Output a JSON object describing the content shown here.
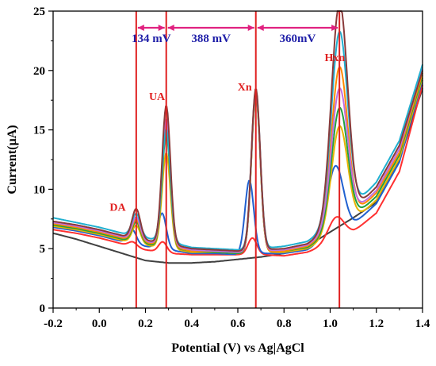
{
  "chart_data": {
    "type": "line",
    "title": "",
    "xlabel": "Potential (V) vs Ag|AgCl",
    "ylabel": "Current(µA)",
    "xlim": [
      -0.2,
      1.4
    ],
    "ylim": [
      0,
      25
    ],
    "xticks": [
      -0.2,
      0.0,
      0.2,
      0.4,
      0.6,
      0.8,
      1.0,
      1.2,
      1.4
    ],
    "xtick_labels": [
      "-0.2",
      "0.0",
      "0.2",
      "0.4",
      "0.6",
      "0.8",
      "1.0",
      "1.2",
      "1.4"
    ],
    "yticks": [
      0,
      5,
      10,
      15,
      20,
      25
    ],
    "ytick_labels": [
      "0",
      "5",
      "10",
      "15",
      "20",
      "25"
    ],
    "grid": false,
    "legend": "none",
    "peak_positions": [
      0.16,
      0.29,
      0.678,
      1.04
    ],
    "peak_lines_color": "#e02020",
    "separations": [
      {
        "label": "134 mV",
        "from": 0.16,
        "to": 0.29
      },
      {
        "label": "388 mV",
        "from": 0.29,
        "to": 0.678
      },
      {
        "label": "360mV",
        "from": 0.678,
        "to": 1.04
      }
    ],
    "separation_color": "#e0207f",
    "separation_text_color": "#1f1fa8",
    "peak_labels": [
      {
        "text": "DA",
        "x": 0.08,
        "y": 8.2
      },
      {
        "text": "UA",
        "x": 0.25,
        "y": 17.5
      },
      {
        "text": "Xn",
        "x": 0.63,
        "y": 18.3
      },
      {
        "text": "Hxn",
        "x": 1.02,
        "y": 20.8
      }
    ],
    "peak_label_color": "#e02020",
    "series": [
      {
        "color": "#404040",
        "baseline": [
          6.3,
          5.8,
          5.2,
          4.6,
          4.0,
          3.8,
          3.8,
          3.9,
          4.1,
          4.3,
          4.6,
          5.2,
          6.4,
          7.6,
          8.9,
          12.5,
          18.5
        ],
        "peaks": [
          0,
          0,
          0,
          0
        ]
      },
      {
        "color": "#ff3030",
        "baseline": [
          6.6,
          6.3,
          5.9,
          5.4,
          4.9,
          4.6,
          4.5,
          4.5,
          4.5,
          4.5,
          4.4,
          4.7,
          5.4,
          6.4,
          8.0,
          11.5,
          18.8
        ],
        "peaks": [
          0.4,
          0.9,
          1.4,
          2.0
        ]
      },
      {
        "color": "#2060d0",
        "baseline": [
          6.8,
          6.5,
          6.1,
          5.6,
          5.2,
          4.9,
          4.6,
          4.6,
          4.5,
          4.6,
          4.6,
          4.9,
          5.8,
          7.0,
          8.8,
          12.3,
          19.2
        ],
        "peaks": [
          1.2,
          3.0,
          6.2,
          5.9
        ]
      },
      {
        "color": "#e8b400",
        "baseline": [
          6.9,
          6.6,
          6.2,
          5.7,
          5.3,
          5.0,
          4.7,
          4.7,
          4.6,
          4.7,
          4.7,
          5.0,
          6.0,
          7.3,
          9.1,
          12.6,
          19.4
        ],
        "peaks": [
          1.5,
          8.0,
          13.2,
          8.8
        ]
      },
      {
        "color": "#20a040",
        "baseline": [
          7.0,
          6.7,
          6.3,
          5.8,
          5.4,
          5.1,
          4.8,
          4.7,
          4.6,
          4.7,
          4.8,
          5.1,
          6.2,
          7.6,
          9.4,
          12.9,
          19.6
        ],
        "peaks": [
          1.7,
          9.5,
          13.3,
          10.1
        ]
      },
      {
        "color": "#ff8a00",
        "baseline": [
          7.1,
          6.8,
          6.4,
          5.9,
          5.5,
          5.2,
          4.8,
          4.8,
          4.7,
          4.7,
          4.8,
          5.2,
          6.3,
          7.8,
          9.7,
          13.1,
          19.8
        ],
        "peaks": [
          1.8,
          10.1,
          13.4,
          13.4
        ]
      },
      {
        "color": "#c070e0",
        "baseline": [
          7.2,
          6.9,
          6.5,
          6.0,
          5.6,
          5.3,
          4.9,
          4.8,
          4.7,
          4.8,
          4.9,
          5.3,
          6.5,
          8.0,
          9.9,
          13.4,
          20.1
        ],
        "peaks": [
          1.9,
          10.6,
          13.5,
          11.4
        ]
      },
      {
        "color": "#20b0d0",
        "baseline": [
          7.6,
          7.2,
          6.8,
          6.3,
          5.9,
          5.6,
          5.1,
          5.0,
          4.9,
          5.0,
          5.2,
          5.6,
          6.8,
          8.5,
          10.6,
          14.1,
          20.5
        ],
        "peaks": [
          1.9,
          9.4,
          13.3,
          15.8
        ]
      },
      {
        "color": "#8a3a3a",
        "baseline": [
          7.3,
          7.0,
          6.6,
          6.1,
          5.7,
          5.4,
          5.0,
          4.9,
          4.8,
          4.9,
          5.0,
          5.4,
          6.6,
          8.2,
          10.2,
          13.7,
          20.0
        ],
        "peaks": [
          2.5,
          11.6,
          13.6,
          18.5
        ]
      }
    ],
    "baseline_x": [
      -0.2,
      -0.1,
      0.0,
      0.1,
      0.2,
      0.3,
      0.4,
      0.5,
      0.6,
      0.7,
      0.8,
      0.9,
      1.0,
      1.1,
      1.2,
      1.3,
      1.4
    ]
  }
}
